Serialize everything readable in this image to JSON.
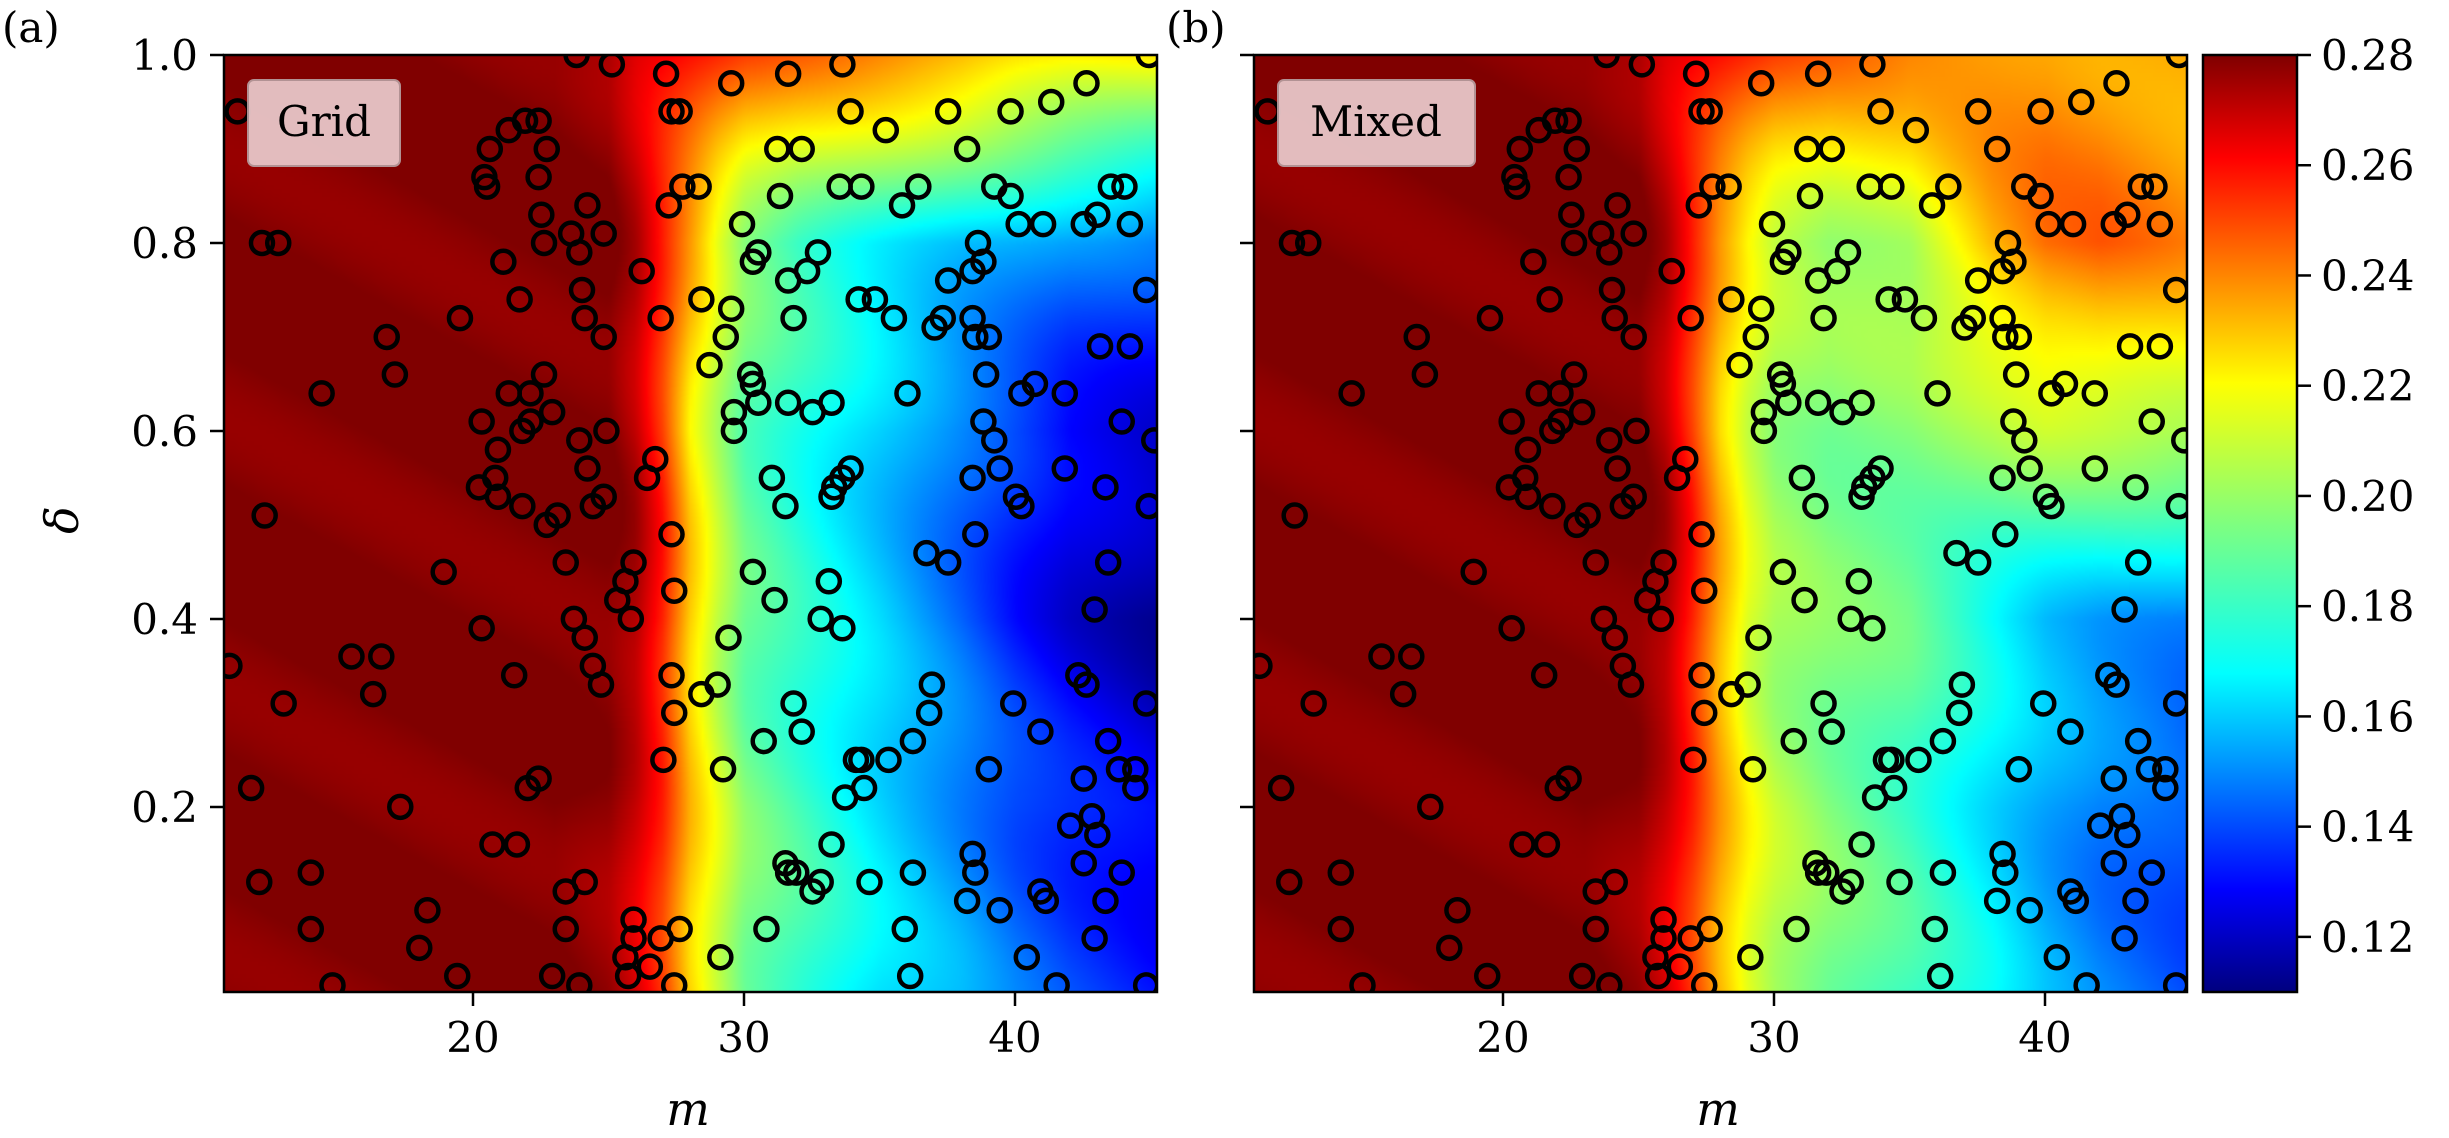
{
  "chart_data": [
    {
      "type": "heatmap",
      "panel_tag": "(a)",
      "box_label": "Grid",
      "xlabel": "m",
      "ylabel": "δ",
      "xlim": [
        10.8,
        45.2
      ],
      "ylim": [
        0.003,
        1.0
      ],
      "xticks": [
        "20",
        "30",
        "40"
      ],
      "yticks": [
        "0.2",
        "0.4",
        "0.6",
        "0.8",
        "1.0"
      ],
      "colormap": "jet",
      "field": {
        "description_rows": "rows from delta=1.0 (top) to delta=0.0 (bottom), values at m = 11,15,20,23,25,26,27,28,29,30,32,35,38,40,42,45",
        "m": [
          11,
          15,
          20,
          23,
          25,
          26,
          27,
          28,
          29,
          30,
          32,
          35,
          38,
          40,
          42,
          45
        ],
        "delta": [
          1.0,
          0.8,
          0.6,
          0.4,
          0.2,
          0.0
        ],
        "values": [
          [
            0.28,
            0.28,
            0.28,
            0.28,
            0.275,
            0.265,
            0.26,
            0.255,
            0.25,
            0.245,
            0.24,
            0.235,
            0.23,
            0.225,
            0.222,
            0.22
          ],
          [
            0.28,
            0.28,
            0.28,
            0.28,
            0.28,
            0.27,
            0.25,
            0.23,
            0.21,
            0.195,
            0.185,
            0.175,
            0.165,
            0.16,
            0.155,
            0.15
          ],
          [
            0.28,
            0.28,
            0.28,
            0.28,
            0.28,
            0.27,
            0.25,
            0.22,
            0.205,
            0.19,
            0.18,
            0.165,
            0.15,
            0.14,
            0.13,
            0.125
          ],
          [
            0.28,
            0.28,
            0.28,
            0.28,
            0.28,
            0.275,
            0.255,
            0.225,
            0.205,
            0.19,
            0.18,
            0.165,
            0.148,
            0.135,
            0.125,
            0.115
          ],
          [
            0.28,
            0.28,
            0.28,
            0.28,
            0.275,
            0.265,
            0.25,
            0.225,
            0.21,
            0.195,
            0.185,
            0.17,
            0.155,
            0.145,
            0.138,
            0.13
          ],
          [
            0.28,
            0.28,
            0.28,
            0.28,
            0.275,
            0.265,
            0.25,
            0.225,
            0.21,
            0.195,
            0.185,
            0.17,
            0.16,
            0.15,
            0.142,
            0.135
          ]
        ]
      }
    },
    {
      "type": "heatmap",
      "panel_tag": "(b)",
      "box_label": "Mixed",
      "xlabel": "m",
      "ylabel": "",
      "xlim": [
        10.8,
        45.2
      ],
      "ylim": [
        0.003,
        1.0
      ],
      "xticks": [
        "20",
        "30",
        "40"
      ],
      "yticks": [],
      "colormap": "jet",
      "field": {
        "m": [
          11,
          15,
          20,
          23,
          25,
          26,
          27,
          28,
          29,
          30,
          32,
          35,
          38,
          40,
          42,
          45
        ],
        "delta": [
          1.0,
          0.8,
          0.6,
          0.4,
          0.2,
          0.0
        ],
        "values": [
          [
            0.28,
            0.28,
            0.28,
            0.28,
            0.275,
            0.265,
            0.26,
            0.255,
            0.25,
            0.245,
            0.24,
            0.235,
            0.235,
            0.235,
            0.232,
            0.23
          ],
          [
            0.28,
            0.28,
            0.28,
            0.28,
            0.28,
            0.27,
            0.25,
            0.23,
            0.215,
            0.205,
            0.2,
            0.205,
            0.23,
            0.24,
            0.242,
            0.235
          ],
          [
            0.28,
            0.28,
            0.28,
            0.28,
            0.28,
            0.27,
            0.25,
            0.225,
            0.21,
            0.2,
            0.195,
            0.195,
            0.2,
            0.205,
            0.205,
            0.205
          ],
          [
            0.28,
            0.28,
            0.28,
            0.28,
            0.28,
            0.275,
            0.255,
            0.23,
            0.21,
            0.2,
            0.195,
            0.19,
            0.175,
            0.165,
            0.16,
            0.155
          ],
          [
            0.28,
            0.28,
            0.28,
            0.28,
            0.275,
            0.265,
            0.25,
            0.23,
            0.215,
            0.205,
            0.195,
            0.185,
            0.17,
            0.16,
            0.152,
            0.145
          ],
          [
            0.28,
            0.28,
            0.28,
            0.28,
            0.275,
            0.265,
            0.25,
            0.23,
            0.215,
            0.205,
            0.195,
            0.185,
            0.172,
            0.16,
            0.152,
            0.145
          ]
        ]
      }
    }
  ],
  "points": [
    [
      44.9,
      1.0
    ],
    [
      42.6,
      0.97
    ],
    [
      41.3,
      0.95
    ],
    [
      39.8,
      0.94
    ],
    [
      38.2,
      0.9
    ],
    [
      37.5,
      0.94
    ],
    [
      35.2,
      0.92
    ],
    [
      33.9,
      0.94
    ],
    [
      32.1,
      0.9
    ],
    [
      31.2,
      0.9
    ],
    [
      33.6,
      0.99
    ],
    [
      31.6,
      0.98
    ],
    [
      29.5,
      0.97
    ],
    [
      27.6,
      0.94
    ],
    [
      27.1,
      0.98
    ],
    [
      27.3,
      0.94
    ],
    [
      25.1,
      0.99
    ],
    [
      23.8,
      1.0
    ],
    [
      11.3,
      0.94
    ],
    [
      12.2,
      0.8
    ],
    [
      12.8,
      0.8
    ],
    [
      14.4,
      0.64
    ],
    [
      12.3,
      0.51
    ],
    [
      11.0,
      0.35
    ],
    [
      13.0,
      0.31
    ],
    [
      11.8,
      0.22
    ],
    [
      12.1,
      0.12
    ],
    [
      14.0,
      0.13
    ],
    [
      14.0,
      0.07
    ],
    [
      14.8,
      0.01
    ],
    [
      15.5,
      0.36
    ],
    [
      16.3,
      0.32
    ],
    [
      16.6,
      0.36
    ],
    [
      16.8,
      0.7
    ],
    [
      17.1,
      0.66
    ],
    [
      17.3,
      0.2
    ],
    [
      18.0,
      0.05
    ],
    [
      18.3,
      0.09
    ],
    [
      18.9,
      0.45
    ],
    [
      19.4,
      0.02
    ],
    [
      19.5,
      0.72
    ],
    [
      20.4,
      0.87
    ],
    [
      20.6,
      0.9
    ],
    [
      20.5,
      0.86
    ],
    [
      21.3,
      0.92
    ],
    [
      21.9,
      0.93
    ],
    [
      22.4,
      0.93
    ],
    [
      22.7,
      0.9
    ],
    [
      21.1,
      0.78
    ],
    [
      21.7,
      0.74
    ],
    [
      22.4,
      0.87
    ],
    [
      22.5,
      0.83
    ],
    [
      22.6,
      0.8
    ],
    [
      23.6,
      0.81
    ],
    [
      23.9,
      0.79
    ],
    [
      24.2,
      0.84
    ],
    [
      24.8,
      0.81
    ],
    [
      24.0,
      0.75
    ],
    [
      24.1,
      0.72
    ],
    [
      24.8,
      0.7
    ],
    [
      20.3,
      0.61
    ],
    [
      20.9,
      0.58
    ],
    [
      20.8,
      0.55
    ],
    [
      20.2,
      0.54
    ],
    [
      20.9,
      0.53
    ],
    [
      21.3,
      0.64
    ],
    [
      21.8,
      0.6
    ],
    [
      22.1,
      0.64
    ],
    [
      22.6,
      0.66
    ],
    [
      22.9,
      0.62
    ],
    [
      22.1,
      0.61
    ],
    [
      21.8,
      0.52
    ],
    [
      22.7,
      0.5
    ],
    [
      23.1,
      0.51
    ],
    [
      23.4,
      0.46
    ],
    [
      23.9,
      0.59
    ],
    [
      24.2,
      0.56
    ],
    [
      24.4,
      0.52
    ],
    [
      24.8,
      0.53
    ],
    [
      24.9,
      0.6
    ],
    [
      20.3,
      0.39
    ],
    [
      21.5,
      0.34
    ],
    [
      23.7,
      0.4
    ],
    [
      24.1,
      0.38
    ],
    [
      24.4,
      0.35
    ],
    [
      24.7,
      0.33
    ],
    [
      25.6,
      0.44
    ],
    [
      25.3,
      0.42
    ],
    [
      25.9,
      0.46
    ],
    [
      25.8,
      0.4
    ],
    [
      20.7,
      0.16
    ],
    [
      21.6,
      0.16
    ],
    [
      22.0,
      0.22
    ],
    [
      22.4,
      0.23
    ],
    [
      23.4,
      0.11
    ],
    [
      24.1,
      0.12
    ],
    [
      22.9,
      0.02
    ],
    [
      23.9,
      0.01
    ],
    [
      23.4,
      0.07
    ],
    [
      25.9,
      0.08
    ],
    [
      25.9,
      0.06
    ],
    [
      25.6,
      0.04
    ],
    [
      25.7,
      0.02
    ],
    [
      26.5,
      0.03
    ],
    [
      26.9,
      0.06
    ],
    [
      27.6,
      0.07
    ],
    [
      27.4,
      0.01
    ],
    [
      27.0,
      0.25
    ],
    [
      27.4,
      0.3
    ],
    [
      27.3,
      0.34
    ],
    [
      27.4,
      0.43
    ],
    [
      27.3,
      0.49
    ],
    [
      26.4,
      0.55
    ],
    [
      26.7,
      0.57
    ],
    [
      26.2,
      0.77
    ],
    [
      26.9,
      0.72
    ],
    [
      27.2,
      0.84
    ],
    [
      27.7,
      0.86
    ],
    [
      28.3,
      0.86
    ],
    [
      28.4,
      0.74
    ],
    [
      28.7,
      0.67
    ],
    [
      29.3,
      0.7
    ],
    [
      29.5,
      0.73
    ],
    [
      29.6,
      0.62
    ],
    [
      29.6,
      0.6
    ],
    [
      30.2,
      0.66
    ],
    [
      30.3,
      0.65
    ],
    [
      30.5,
      0.63
    ],
    [
      31.6,
      0.63
    ],
    [
      29.9,
      0.82
    ],
    [
      30.3,
      0.78
    ],
    [
      30.5,
      0.79
    ],
    [
      31.3,
      0.85
    ],
    [
      31.6,
      0.76
    ],
    [
      31.8,
      0.72
    ],
    [
      32.3,
      0.77
    ],
    [
      32.7,
      0.79
    ],
    [
      33.5,
      0.86
    ],
    [
      34.3,
      0.86
    ],
    [
      31.0,
      0.55
    ],
    [
      31.5,
      0.52
    ],
    [
      32.5,
      0.62
    ],
    [
      33.2,
      0.63
    ],
    [
      33.3,
      0.54
    ],
    [
      33.2,
      0.53
    ],
    [
      33.6,
      0.55
    ],
    [
      33.9,
      0.56
    ],
    [
      33.1,
      0.44
    ],
    [
      33.6,
      0.39
    ],
    [
      32.8,
      0.4
    ],
    [
      31.1,
      0.42
    ],
    [
      30.3,
      0.45
    ],
    [
      29.4,
      0.38
    ],
    [
      28.4,
      0.32
    ],
    [
      29.0,
      0.33
    ],
    [
      29.2,
      0.24
    ],
    [
      30.7,
      0.27
    ],
    [
      31.8,
      0.31
    ],
    [
      32.1,
      0.28
    ],
    [
      34.1,
      0.25
    ],
    [
      34.3,
      0.25
    ],
    [
      34.4,
      0.22
    ],
    [
      33.7,
      0.21
    ],
    [
      31.5,
      0.14
    ],
    [
      31.6,
      0.13
    ],
    [
      31.9,
      0.13
    ],
    [
      32.8,
      0.12
    ],
    [
      32.5,
      0.11
    ],
    [
      33.2,
      0.16
    ],
    [
      34.6,
      0.12
    ],
    [
      36.2,
      0.13
    ],
    [
      35.9,
      0.07
    ],
    [
      36.1,
      0.02
    ],
    [
      35.3,
      0.25
    ],
    [
      36.2,
      0.27
    ],
    [
      36.8,
      0.3
    ],
    [
      36.9,
      0.33
    ],
    [
      30.8,
      0.07
    ],
    [
      29.1,
      0.04
    ],
    [
      34.8,
      0.74
    ],
    [
      34.2,
      0.74
    ],
    [
      35.5,
      0.72
    ],
    [
      35.8,
      0.84
    ],
    [
      36.4,
      0.86
    ],
    [
      36.0,
      0.64
    ],
    [
      37.0,
      0.71
    ],
    [
      37.3,
      0.72
    ],
    [
      37.5,
      0.76
    ],
    [
      38.4,
      0.72
    ],
    [
      38.4,
      0.77
    ],
    [
      38.6,
      0.8
    ],
    [
      38.8,
      0.78
    ],
    [
      38.9,
      0.66
    ],
    [
      39.0,
      0.7
    ],
    [
      38.5,
      0.7
    ],
    [
      39.2,
      0.86
    ],
    [
      39.8,
      0.85
    ],
    [
      40.1,
      0.82
    ],
    [
      41.0,
      0.82
    ],
    [
      40.7,
      0.65
    ],
    [
      40.2,
      0.64
    ],
    [
      41.8,
      0.64
    ],
    [
      38.8,
      0.61
    ],
    [
      38.4,
      0.55
    ],
    [
      39.2,
      0.59
    ],
    [
      39.4,
      0.56
    ],
    [
      40.0,
      0.53
    ],
    [
      40.2,
      0.52
    ],
    [
      41.8,
      0.56
    ],
    [
      42.5,
      0.82
    ],
    [
      43.0,
      0.83
    ],
    [
      43.5,
      0.86
    ],
    [
      44.0,
      0.86
    ],
    [
      44.2,
      0.82
    ],
    [
      43.1,
      0.69
    ],
    [
      44.2,
      0.69
    ],
    [
      44.8,
      0.75
    ],
    [
      43.3,
      0.54
    ],
    [
      44.9,
      0.52
    ],
    [
      45.1,
      0.59
    ],
    [
      43.9,
      0.61
    ],
    [
      43.4,
      0.46
    ],
    [
      42.9,
      0.41
    ],
    [
      42.3,
      0.34
    ],
    [
      42.6,
      0.33
    ],
    [
      40.9,
      0.28
    ],
    [
      39.9,
      0.31
    ],
    [
      39.0,
      0.24
    ],
    [
      36.7,
      0.47
    ],
    [
      37.5,
      0.46
    ],
    [
      38.5,
      0.49
    ],
    [
      38.4,
      0.15
    ],
    [
      38.5,
      0.13
    ],
    [
      38.2,
      0.1
    ],
    [
      39.4,
      0.09
    ],
    [
      40.9,
      0.11
    ],
    [
      41.1,
      0.1
    ],
    [
      42.5,
      0.23
    ],
    [
      42.8,
      0.19
    ],
    [
      43.0,
      0.17
    ],
    [
      43.4,
      0.27
    ],
    [
      43.8,
      0.24
    ],
    [
      44.4,
      0.22
    ],
    [
      44.8,
      0.31
    ],
    [
      42.5,
      0.14
    ],
    [
      43.3,
      0.1
    ],
    [
      42.0,
      0.18
    ],
    [
      40.4,
      0.04
    ],
    [
      41.5,
      0.01
    ],
    [
      42.9,
      0.06
    ],
    [
      44.8,
      0.01
    ],
    [
      43.9,
      0.13
    ],
    [
      44.4,
      0.24
    ]
  ],
  "colorbar": {
    "min": 0.11,
    "max": 0.28,
    "ticks": [
      "0.28",
      "0.26",
      "0.24",
      "0.22",
      "0.20",
      "0.18",
      "0.16",
      "0.14",
      "0.12"
    ],
    "tick_values": [
      0.28,
      0.26,
      0.24,
      0.22,
      0.2,
      0.18,
      0.16,
      0.14,
      0.12
    ]
  }
}
